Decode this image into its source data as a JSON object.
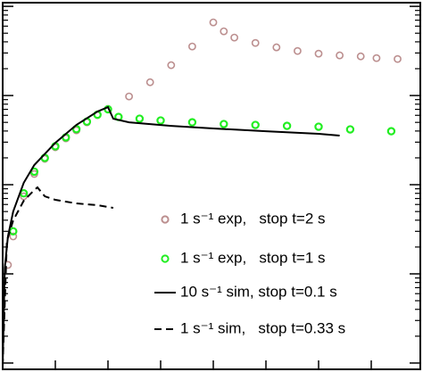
{
  "chart_data": {
    "type": "line",
    "yscale": "log",
    "legend": "lower right",
    "xlim": [
      0,
      3.966
    ],
    "xticks": [
      0,
      0.5,
      1,
      1.5,
      2,
      2.5,
      3,
      3.5
    ],
    "ylim": [
      0.0085,
      110
    ],
    "yticks": [
      0.01,
      0.1,
      1,
      10,
      100
    ],
    "series": [
      {
        "name": "1 s⁻¹ exp,   stop t=2 s",
        "color": "#bc8f8f",
        "style": "circle",
        "x": [
          0.05,
          0.1,
          0.2,
          0.3,
          0.4,
          0.5,
          0.6,
          0.7,
          0.8,
          0.9,
          1.0,
          1.2,
          1.4,
          1.6,
          1.8,
          2.0,
          2.1,
          2.2,
          2.4,
          2.6,
          2.8,
          3.0,
          3.2,
          3.4,
          3.55,
          3.75
        ],
        "values": [
          0.126,
          0.263,
          0.741,
          1.32,
          1.95,
          2.63,
          3.31,
          4.07,
          5.01,
          6.03,
          7.08,
          9.77,
          14.1,
          21.9,
          35.5,
          66.1,
          52.5,
          44.7,
          38.9,
          34.7,
          31.6,
          29.5,
          28.2,
          27.5,
          26.3,
          25.7
        ]
      },
      {
        "name": "1 s⁻¹ exp,   stop t=1 s",
        "color": "#22ee22",
        "style": "circle",
        "x": [
          0.1,
          0.2,
          0.3,
          0.4,
          0.5,
          0.6,
          0.7,
          0.8,
          0.9,
          1.0,
          1.1,
          1.3,
          1.5,
          1.8,
          2.1,
          2.4,
          2.7,
          3.0,
          3.3,
          3.69
        ],
        "values": [
          0.3,
          0.8,
          1.4,
          2.0,
          2.7,
          3.4,
          4.2,
          5.1,
          6.1,
          7.0,
          5.75,
          5.5,
          5.25,
          5.01,
          4.79,
          4.68,
          4.57,
          4.47,
          4.17,
          3.98
        ]
      },
      {
        "name": "10 s⁻¹ sim, stop t=0.1 s",
        "color": "#000000",
        "style": "solid",
        "x": [
          0.0,
          0.02,
          0.05,
          0.1,
          0.2,
          0.3,
          0.5,
          0.7,
          0.9,
          1.0,
          1.05,
          1.2,
          1.6,
          2.0,
          2.5,
          3.0,
          3.2
        ],
        "values": [
          0.0093,
          0.117,
          0.263,
          0.501,
          1.05,
          1.66,
          2.95,
          4.68,
          6.61,
          7.41,
          5.5,
          5.01,
          4.57,
          4.27,
          3.98,
          3.72,
          3.55
        ]
      },
      {
        "name": "1 s⁻¹ sim,   stop t=0.33 s",
        "color": "#000000",
        "style": "dashed",
        "x": [
          0.0,
          0.04,
          0.1,
          0.2,
          0.3,
          0.33,
          0.4,
          0.5,
          0.7,
          0.9,
          1.05
        ],
        "values": [
          0.0093,
          0.234,
          0.398,
          0.661,
          0.871,
          0.933,
          0.741,
          0.676,
          0.617,
          0.589,
          0.55
        ]
      }
    ]
  }
}
